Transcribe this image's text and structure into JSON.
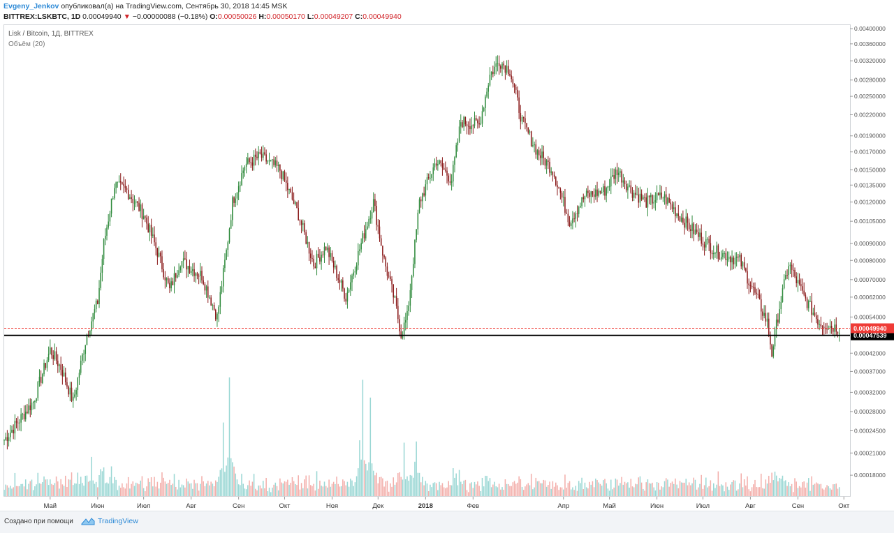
{
  "header": {
    "author": "Evgeny_Jenkov",
    "published_text": "опубликовал(а) на TradingView.com, Сентябрь 30, 2018 14:45 MSK",
    "symbol_line": "BITTREX:LSKBTC, 1D",
    "last_price": "0.00049940",
    "change_arrow": "▼",
    "change": "−0.00000088 (−0.18%)",
    "o_label": "O:",
    "o_value": "0.00050026",
    "h_label": "H:",
    "h_value": "0.00050170",
    "l_label": "L:",
    "l_value": "0.00049207",
    "c_label": "C:",
    "c_value": "0.00049940"
  },
  "legend": {
    "series": "Lisk / Bitcoin, 1Д, BITTREX",
    "volume": "Объём (20)"
  },
  "footer": {
    "made_with": "Создано при помощи",
    "brand": "TradingView"
  },
  "colors": {
    "up": "#2f8a3c",
    "down": "#8a1a1a",
    "vol_up": "#8fd3cf",
    "vol_down": "#f2a6a2",
    "current_price": "#ef3b36",
    "support": "#000000",
    "grid": "#e6e9ee",
    "accent": "#2c89d6"
  },
  "chart_data": {
    "type": "candlestick",
    "symbol": "LSKBTC",
    "exchange": "BITTREX",
    "timeframe": "1Д",
    "y_scale": "log",
    "ylim": [
      0.000155,
      0.0041
    ],
    "y_ticks": [
      "0.00400000",
      "0.00360000",
      "0.00320000",
      "0.00280000",
      "0.00250000",
      "0.00220000",
      "0.00190000",
      "0.00170000",
      "0.00150000",
      "0.00135000",
      "0.00120000",
      "0.00105000",
      "0.00090000",
      "0.00080000",
      "0.00070000",
      "0.00062000",
      "0.00054000",
      "0.00042000",
      "0.00037000",
      "0.00032000",
      "0.00028000",
      "0.00024500",
      "0.00021000",
      "0.00018000"
    ],
    "x_range": [
      "2017-04-01",
      "2018-10-05"
    ],
    "x_ticks": [
      {
        "label": "Май",
        "date": "2017-05-01"
      },
      {
        "label": "Июн",
        "date": "2017-06-01"
      },
      {
        "label": "Июл",
        "date": "2017-07-01"
      },
      {
        "label": "Авг",
        "date": "2017-08-01"
      },
      {
        "label": "Сен",
        "date": "2017-09-01"
      },
      {
        "label": "Окт",
        "date": "2017-10-01"
      },
      {
        "label": "Ноя",
        "date": "2017-11-01"
      },
      {
        "label": "Дек",
        "date": "2017-12-01"
      },
      {
        "label": "2018",
        "date": "2018-01-01"
      },
      {
        "label": "Фев",
        "date": "2018-02-01"
      },
      {
        "label": "Апр",
        "date": "2018-04-01"
      },
      {
        "label": "Май",
        "date": "2018-05-01"
      },
      {
        "label": "Июн",
        "date": "2018-06-01"
      },
      {
        "label": "Июл",
        "date": "2018-07-01"
      },
      {
        "label": "Авг",
        "date": "2018-08-01"
      },
      {
        "label": "Сен",
        "date": "2018-09-01"
      },
      {
        "label": "Окт",
        "date": "2018-10-01"
      }
    ],
    "price_path": [
      {
        "date": "2017-04-01",
        "close": 0.00023
      },
      {
        "date": "2017-04-20",
        "close": 0.0003
      },
      {
        "date": "2017-05-01",
        "close": 0.00043
      },
      {
        "date": "2017-05-08",
        "close": 0.00038
      },
      {
        "date": "2017-05-16",
        "close": 0.0003
      },
      {
        "date": "2017-05-25",
        "close": 0.00048
      },
      {
        "date": "2017-06-01",
        "close": 0.0006
      },
      {
        "date": "2017-06-05",
        "close": 0.0009
      },
      {
        "date": "2017-06-12",
        "close": 0.00135
      },
      {
        "date": "2017-06-20",
        "close": 0.0013
      },
      {
        "date": "2017-07-01",
        "close": 0.0011
      },
      {
        "date": "2017-07-10",
        "close": 0.00085
      },
      {
        "date": "2017-07-18",
        "close": 0.00065
      },
      {
        "date": "2017-07-25",
        "close": 0.0008
      },
      {
        "date": "2017-08-08",
        "close": 0.00072
      },
      {
        "date": "2017-08-18",
        "close": 0.00054
      },
      {
        "date": "2017-08-24",
        "close": 0.00085
      },
      {
        "date": "2017-08-28",
        "close": 0.0012
      },
      {
        "date": "2017-09-05",
        "close": 0.00155
      },
      {
        "date": "2017-09-15",
        "close": 0.00165
      },
      {
        "date": "2017-09-28",
        "close": 0.0015
      },
      {
        "date": "2017-10-10",
        "close": 0.0011
      },
      {
        "date": "2017-10-20",
        "close": 0.00078
      },
      {
        "date": "2017-10-28",
        "close": 0.00088
      },
      {
        "date": "2017-11-10",
        "close": 0.00062
      },
      {
        "date": "2017-11-20",
        "close": 0.0009
      },
      {
        "date": "2017-11-28",
        "close": 0.0012
      },
      {
        "date": "2017-12-05",
        "close": 0.0008
      },
      {
        "date": "2017-12-12",
        "close": 0.0006
      },
      {
        "date": "2017-12-16",
        "close": 0.00048
      },
      {
        "date": "2017-12-20",
        "close": 0.00054
      },
      {
        "date": "2017-12-28",
        "close": 0.0012
      },
      {
        "date": "2018-01-08",
        "close": 0.0016
      },
      {
        "date": "2018-01-18",
        "close": 0.0014
      },
      {
        "date": "2018-01-24",
        "close": 0.0021
      },
      {
        "date": "2018-02-05",
        "close": 0.00205
      },
      {
        "date": "2018-02-12",
        "close": 0.0029
      },
      {
        "date": "2018-02-18",
        "close": 0.0032
      },
      {
        "date": "2018-02-25",
        "close": 0.003
      },
      {
        "date": "2018-03-05",
        "close": 0.0021
      },
      {
        "date": "2018-03-15",
        "close": 0.0017
      },
      {
        "date": "2018-03-25",
        "close": 0.0015
      },
      {
        "date": "2018-04-05",
        "close": 0.00105
      },
      {
        "date": "2018-04-15",
        "close": 0.00125
      },
      {
        "date": "2018-04-28",
        "close": 0.0013
      },
      {
        "date": "2018-05-06",
        "close": 0.0015
      },
      {
        "date": "2018-05-15",
        "close": 0.0013
      },
      {
        "date": "2018-05-25",
        "close": 0.0012
      },
      {
        "date": "2018-06-05",
        "close": 0.00125
      },
      {
        "date": "2018-06-15",
        "close": 0.0011
      },
      {
        "date": "2018-06-28",
        "close": 0.00095
      },
      {
        "date": "2018-07-10",
        "close": 0.00085
      },
      {
        "date": "2018-07-25",
        "close": 0.0008
      },
      {
        "date": "2018-08-05",
        "close": 0.00062
      },
      {
        "date": "2018-08-12",
        "close": 0.00052
      },
      {
        "date": "2018-08-15",
        "close": 0.00042
      },
      {
        "date": "2018-08-20",
        "close": 0.00058
      },
      {
        "date": "2018-08-26",
        "close": 0.00078
      },
      {
        "date": "2018-09-05",
        "close": 0.00062
      },
      {
        "date": "2018-09-15",
        "close": 0.00052
      },
      {
        "date": "2018-09-28",
        "close": 0.000499
      }
    ],
    "volume_peaks": [
      {
        "date": "2017-08-26",
        "relative": 1.0,
        "dir": "up"
      },
      {
        "date": "2017-08-22",
        "relative": 0.62,
        "dir": "up"
      },
      {
        "date": "2017-11-21",
        "relative": 0.98,
        "dir": "down"
      },
      {
        "date": "2017-11-26",
        "relative": 0.83,
        "dir": "down"
      },
      {
        "date": "2017-11-19",
        "relative": 0.47,
        "dir": "up"
      },
      {
        "date": "2017-12-18",
        "relative": 0.45,
        "dir": "up"
      },
      {
        "date": "2017-12-26",
        "relative": 0.46,
        "dir": "up"
      },
      {
        "date": "2017-05-28",
        "relative": 0.33,
        "dir": "up"
      },
      {
        "date": "2017-06-10",
        "relative": 0.25,
        "dir": "up"
      },
      {
        "date": "2018-02-10",
        "relative": 0.17,
        "dir": "up"
      }
    ],
    "current_price": {
      "value": 0.0004994,
      "label": "0.00049940"
    },
    "support_line": {
      "value": 0.00047539,
      "label": "0.00047539"
    }
  }
}
